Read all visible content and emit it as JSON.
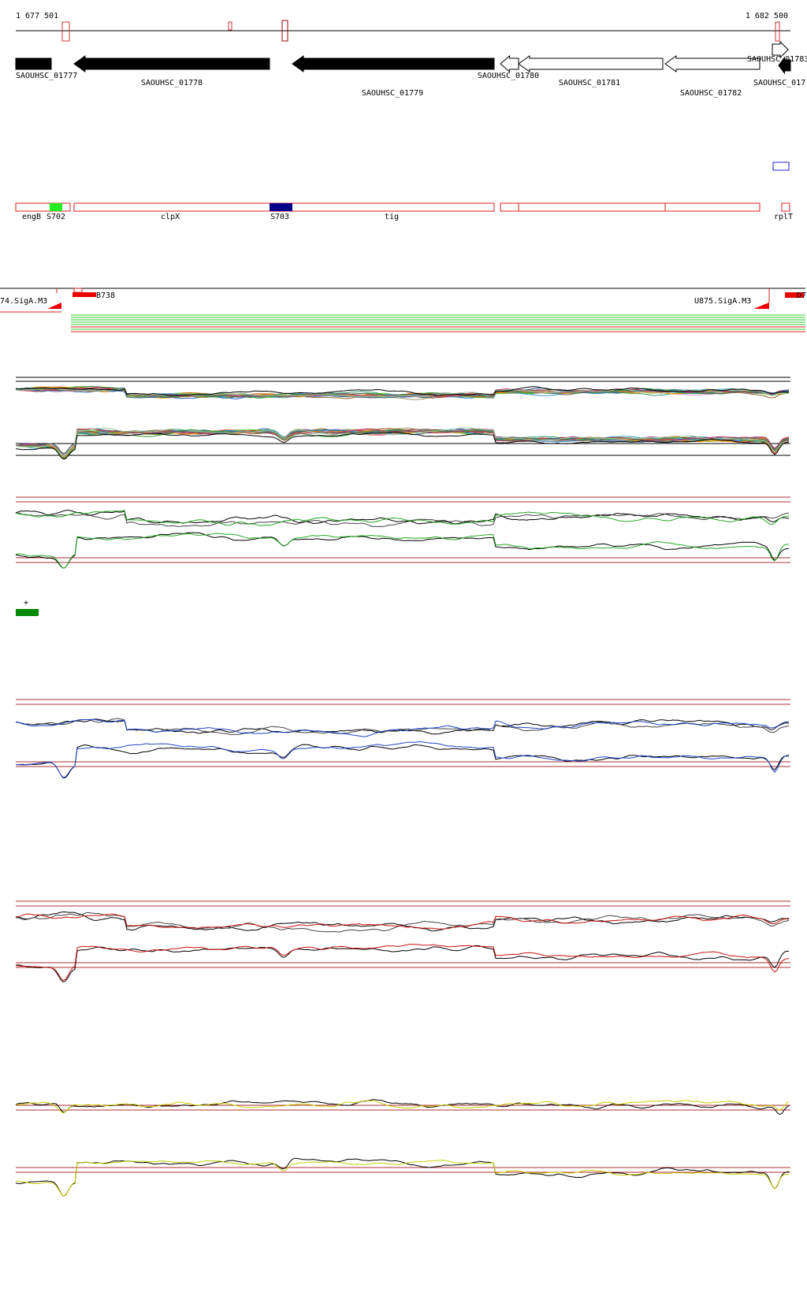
{
  "ruler": {
    "start": "1 677 501",
    "end": "1 682 500"
  },
  "genes": [
    "SAOUHSC_01777",
    "SAOUHSC_01778",
    "SAOUHSC_01779",
    "SAOUHSC_01780",
    "SAOUHSC_01781",
    "SAOUHSC_01782",
    "SAOUHSC_01783",
    "SAOUHSC_017"
  ],
  "features": [
    "engB",
    "S702",
    "clpX",
    "S703",
    "tig",
    "rplT"
  ],
  "sites": [
    "74.SigA.M3",
    "B738",
    "U875.SigA.M3",
    "D7"
  ],
  "strand_label": "+"
}
